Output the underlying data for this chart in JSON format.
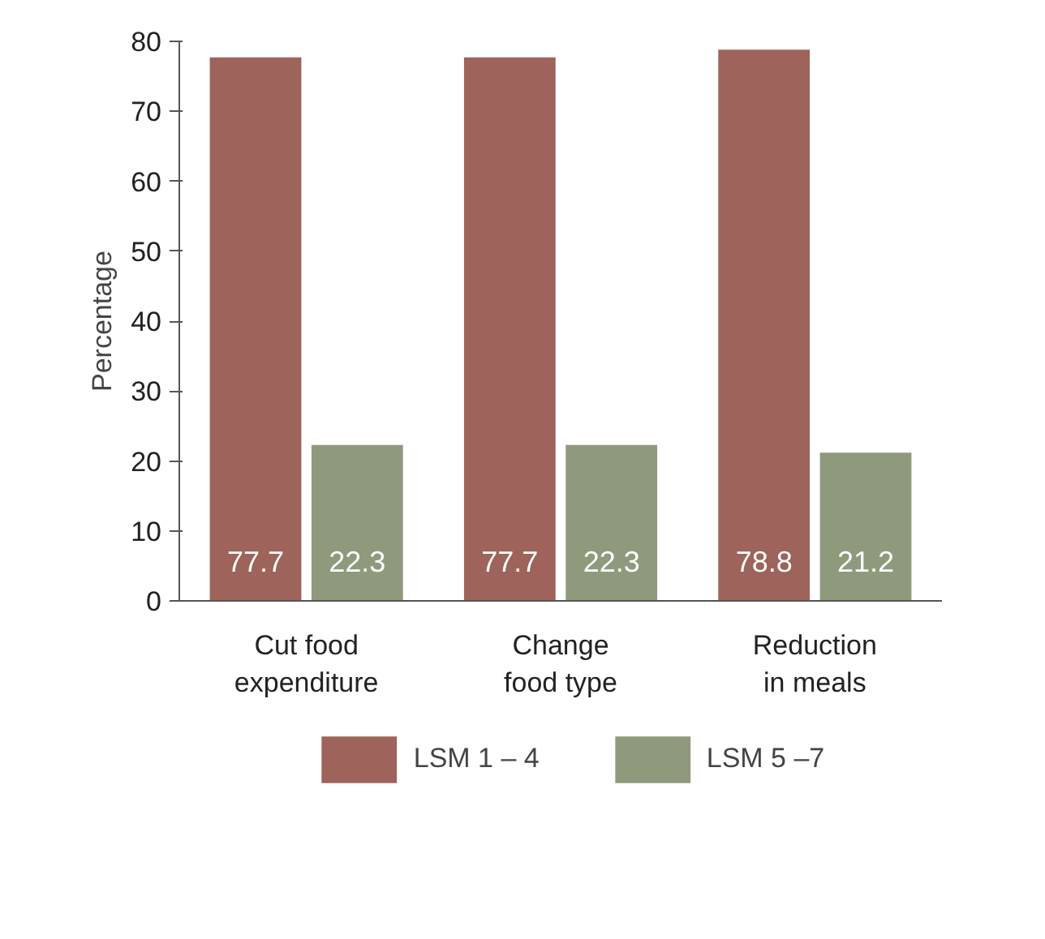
{
  "chart_data": {
    "type": "bar",
    "ylabel": "Percentage",
    "categories": [
      "Cut food expenditure",
      "Change food type",
      "Reduction in meals"
    ],
    "series": [
      {
        "name": "LSM 1 – 4",
        "color": "#9e635a",
        "values": [
          77.7,
          77.7,
          78.8
        ]
      },
      {
        "name": "LSM 5 –7",
        "color": "#8f9a7d",
        "values": [
          22.3,
          22.3,
          21.2
        ]
      }
    ],
    "ylim": [
      0,
      80
    ],
    "yticks": [
      0,
      10,
      20,
      30,
      40,
      50,
      60,
      70,
      80
    ],
    "data_labels": true,
    "legend": "bottom",
    "grid": false
  }
}
